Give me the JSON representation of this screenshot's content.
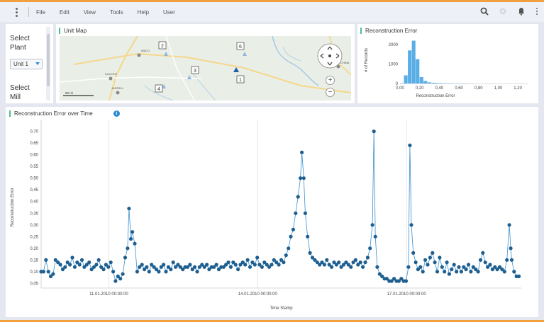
{
  "menu": {
    "items": [
      "File",
      "Edit",
      "View",
      "Tools",
      "Help",
      "User"
    ]
  },
  "left_panel": {
    "select_plant_label": "Select Plant",
    "select_mill_label": "Select Mill",
    "unit_selected": "Unit 1"
  },
  "unit_map": {
    "title": "Unit Map",
    "towns": [
      "WACO",
      "KILLEEN",
      "JARRELL",
      "CHINA"
    ],
    "markers": [
      "1",
      "2",
      "3",
      "4",
      "6"
    ],
    "scale_label": "50 mi"
  },
  "histogram": {
    "title": "Reconstruction Error",
    "chart_data": {
      "type": "bar",
      "xlabel": "Reconstruction Error",
      "ylabel": "# of Records",
      "x_ticks": [
        "0,00",
        "0,20",
        "0,40",
        "0,60",
        "0,80",
        "1,00",
        "1,20"
      ],
      "y_ticks": [
        "0",
        "1000",
        "2000"
      ],
      "xlim": [
        0,
        1.3
      ],
      "ylim": [
        0,
        2400
      ],
      "bins": [
        {
          "x": 0.02,
          "count": 20
        },
        {
          "x": 0.06,
          "count": 420
        },
        {
          "x": 0.1,
          "count": 1700
        },
        {
          "x": 0.14,
          "count": 2200
        },
        {
          "x": 0.18,
          "count": 1250
        },
        {
          "x": 0.22,
          "count": 330
        },
        {
          "x": 0.26,
          "count": 130
        },
        {
          "x": 0.3,
          "count": 60
        },
        {
          "x": 0.34,
          "count": 40
        },
        {
          "x": 0.38,
          "count": 30
        },
        {
          "x": 0.42,
          "count": 25
        },
        {
          "x": 0.46,
          "count": 20
        },
        {
          "x": 0.5,
          "count": 15
        },
        {
          "x": 0.54,
          "count": 10
        },
        {
          "x": 0.58,
          "count": 10
        },
        {
          "x": 0.62,
          "count": 5
        },
        {
          "x": 0.66,
          "count": 5
        },
        {
          "x": 0.7,
          "count": 5
        }
      ]
    }
  },
  "timeseries": {
    "title": "Reconstruction Error over Time",
    "chart_data": {
      "type": "scatter",
      "xlabel": "Time Stamp",
      "ylabel": "Reconstruction Error",
      "ylim": [
        0.03,
        0.72
      ],
      "xlim": [
        0,
        100
      ],
      "y_ticks": [
        0.05,
        0.1,
        0.15,
        0.2,
        0.25,
        0.3,
        0.35,
        0.4,
        0.45,
        0.5,
        0.55,
        0.6,
        0.65,
        0.7
      ],
      "y_tick_labels": [
        "0,05",
        "0,10",
        "0,15",
        "0,20",
        "0,25",
        "0,30",
        "0,35",
        "0,40",
        "0,45",
        "0,50",
        "0,55",
        "0,60",
        "0,65",
        "0,70"
      ],
      "x_ticks": [
        {
          "x": 14.1,
          "label": "11.01.2010 00:00:00"
        },
        {
          "x": 45.1,
          "label": "14.01.2010 00:00:00"
        },
        {
          "x": 76.1,
          "label": "17.01.2010 00:00:00"
        }
      ],
      "grid": true,
      "series": [
        {
          "color": "#1f5f8f",
          "points": [
            [
              0,
              0.1
            ],
            [
              0.5,
              0.1
            ],
            [
              1,
              0.15
            ],
            [
              1.5,
              0.1
            ],
            [
              2,
              0.08
            ],
            [
              2.5,
              0.09
            ],
            [
              3,
              0.15
            ],
            [
              3.5,
              0.14
            ],
            [
              4,
              0.13
            ],
            [
              4.5,
              0.11
            ],
            [
              5,
              0.12
            ],
            [
              5.5,
              0.14
            ],
            [
              6,
              0.13
            ],
            [
              6.5,
              0.16
            ],
            [
              7,
              0.12
            ],
            [
              7.5,
              0.14
            ],
            [
              8,
              0.13
            ],
            [
              8.5,
              0.15
            ],
            [
              9,
              0.12
            ],
            [
              9.5,
              0.13
            ],
            [
              10,
              0.14
            ],
            [
              10.5,
              0.11
            ],
            [
              11,
              0.12
            ],
            [
              11.5,
              0.13
            ],
            [
              12,
              0.15
            ],
            [
              12.5,
              0.12
            ],
            [
              13,
              0.11
            ],
            [
              13.5,
              0.13
            ],
            [
              14,
              0.12
            ],
            [
              14.5,
              0.14
            ],
            [
              15,
              0.1
            ],
            [
              15.5,
              0.06
            ],
            [
              16,
              0.08
            ],
            [
              16.5,
              0.07
            ],
            [
              17,
              0.09
            ],
            [
              17.5,
              0.16
            ],
            [
              18,
              0.2
            ],
            [
              18.3,
              0.37
            ],
            [
              18.7,
              0.24
            ],
            [
              19,
              0.27
            ],
            [
              19.5,
              0.22
            ],
            [
              20,
              0.1
            ],
            [
              20.5,
              0.12
            ],
            [
              21,
              0.13
            ],
            [
              21.5,
              0.11
            ],
            [
              22,
              0.12
            ],
            [
              22.5,
              0.1
            ],
            [
              23,
              0.13
            ],
            [
              23.5,
              0.12
            ],
            [
              24,
              0.11
            ],
            [
              24.5,
              0.1
            ],
            [
              25,
              0.12
            ],
            [
              25.5,
              0.13
            ],
            [
              26,
              0.1
            ],
            [
              26.5,
              0.12
            ],
            [
              27,
              0.11
            ],
            [
              27.5,
              0.14
            ],
            [
              28,
              0.12
            ],
            [
              28.5,
              0.13
            ],
            [
              29,
              0.12
            ],
            [
              29.5,
              0.11
            ],
            [
              30,
              0.12
            ],
            [
              30.5,
              0.12
            ],
            [
              31,
              0.13
            ],
            [
              31.5,
              0.11
            ],
            [
              32,
              0.12
            ],
            [
              32.5,
              0.1
            ],
            [
              33,
              0.12
            ],
            [
              33.5,
              0.13
            ],
            [
              34,
              0.12
            ],
            [
              34.5,
              0.13
            ],
            [
              35,
              0.11
            ],
            [
              35.5,
              0.12
            ],
            [
              36,
              0.12
            ],
            [
              36.5,
              0.13
            ],
            [
              37,
              0.11
            ],
            [
              37.5,
              0.12
            ],
            [
              38,
              0.12
            ],
            [
              38.5,
              0.13
            ],
            [
              39,
              0.14
            ],
            [
              39.5,
              0.12
            ],
            [
              40,
              0.14
            ],
            [
              40.5,
              0.13
            ],
            [
              41,
              0.11
            ],
            [
              41.5,
              0.13
            ],
            [
              42,
              0.14
            ],
            [
              42.5,
              0.13
            ],
            [
              43,
              0.15
            ],
            [
              43.5,
              0.12
            ],
            [
              44,
              0.14
            ],
            [
              44.5,
              0.13
            ],
            [
              45,
              0.16
            ],
            [
              45.5,
              0.13
            ],
            [
              46,
              0.12
            ],
            [
              46.5,
              0.14
            ],
            [
              47,
              0.13
            ],
            [
              47.5,
              0.12
            ],
            [
              48,
              0.13
            ],
            [
              48.5,
              0.15
            ],
            [
              49,
              0.14
            ],
            [
              49.5,
              0.13
            ],
            [
              50,
              0.15
            ],
            [
              50.5,
              0.14
            ],
            [
              51,
              0.17
            ],
            [
              51.5,
              0.2
            ],
            [
              52,
              0.25
            ],
            [
              52.5,
              0.28
            ],
            [
              53,
              0.35
            ],
            [
              53.5,
              0.42
            ],
            [
              54,
              0.5
            ],
            [
              54.3,
              0.61
            ],
            [
              54.7,
              0.5
            ],
            [
              55,
              0.35
            ],
            [
              55.5,
              0.25
            ],
            [
              56,
              0.18
            ],
            [
              56.5,
              0.16
            ],
            [
              57,
              0.15
            ],
            [
              57.5,
              0.14
            ],
            [
              58,
              0.13
            ],
            [
              58.5,
              0.14
            ],
            [
              59,
              0.13
            ],
            [
              59.5,
              0.15
            ],
            [
              60,
              0.13
            ],
            [
              60.5,
              0.12
            ],
            [
              61,
              0.14
            ],
            [
              61.5,
              0.13
            ],
            [
              62,
              0.14
            ],
            [
              62.5,
              0.12
            ],
            [
              63,
              0.13
            ],
            [
              63.5,
              0.14
            ],
            [
              64,
              0.13
            ],
            [
              64.5,
              0.12
            ],
            [
              65,
              0.14
            ],
            [
              65.5,
              0.15
            ],
            [
              66,
              0.13
            ],
            [
              66.5,
              0.14
            ],
            [
              67,
              0.12
            ],
            [
              67.5,
              0.14
            ],
            [
              68,
              0.16
            ],
            [
              68.5,
              0.2
            ],
            [
              69,
              0.3
            ],
            [
              69.3,
              0.7
            ],
            [
              69.6,
              0.25
            ],
            [
              70,
              0.12
            ],
            [
              70.5,
              0.09
            ],
            [
              71,
              0.08
            ],
            [
              71.5,
              0.07
            ],
            [
              72,
              0.07
            ],
            [
              72.5,
              0.06
            ],
            [
              73,
              0.06
            ],
            [
              73.5,
              0.07
            ],
            [
              74,
              0.06
            ],
            [
              74.5,
              0.06
            ],
            [
              75,
              0.07
            ],
            [
              75.5,
              0.06
            ],
            [
              76,
              0.06
            ],
            [
              76.5,
              0.12
            ],
            [
              76.8,
              0.64
            ],
            [
              77.1,
              0.3
            ],
            [
              77.5,
              0.18
            ],
            [
              78,
              0.14
            ],
            [
              78.5,
              0.11
            ],
            [
              79,
              0.12
            ],
            [
              79.5,
              0.1
            ],
            [
              80,
              0.15
            ],
            [
              80.5,
              0.13
            ],
            [
              81,
              0.16
            ],
            [
              81.5,
              0.18
            ],
            [
              82,
              0.14
            ],
            [
              82.5,
              0.1
            ],
            [
              83,
              0.16
            ],
            [
              83.5,
              0.12
            ],
            [
              84,
              0.1
            ],
            [
              84.5,
              0.14
            ],
            [
              85,
              0.09
            ],
            [
              85.5,
              0.11
            ],
            [
              86,
              0.13
            ],
            [
              86.5,
              0.1
            ],
            [
              87,
              0.12
            ],
            [
              87.5,
              0.1
            ],
            [
              88,
              0.12
            ],
            [
              88.5,
              0.11
            ],
            [
              89,
              0.13
            ],
            [
              89.5,
              0.1
            ],
            [
              90,
              0.12
            ],
            [
              90.5,
              0.11
            ],
            [
              91,
              0.1
            ],
            [
              91.5,
              0.15
            ],
            [
              92,
              0.18
            ],
            [
              92.5,
              0.14
            ],
            [
              93,
              0.12
            ],
            [
              93.5,
              0.13
            ],
            [
              94,
              0.11
            ],
            [
              94.5,
              0.12
            ],
            [
              95,
              0.11
            ],
            [
              95.5,
              0.12
            ],
            [
              96,
              0.11
            ],
            [
              96.5,
              0.1
            ],
            [
              97,
              0.15
            ],
            [
              97.5,
              0.3
            ],
            [
              97.8,
              0.2
            ],
            [
              98,
              0.15
            ],
            [
              98.5,
              0.1
            ],
            [
              99,
              0.08
            ],
            [
              99.5,
              0.08
            ]
          ]
        }
      ]
    }
  }
}
